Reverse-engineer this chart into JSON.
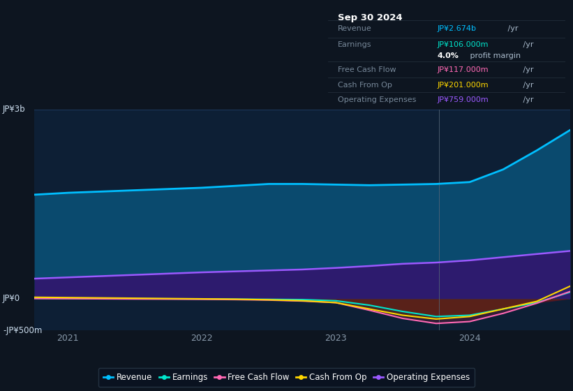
{
  "background_color": "#0d1520",
  "chart_bg": "#0d1f35",
  "title": "Sep 30 2024",
  "ylim": [
    -500,
    3000
  ],
  "ytick_vals": [
    -500,
    0,
    3000
  ],
  "ytick_labels": [
    "-JP¥500m",
    "JP¥0",
    "JP¥3b"
  ],
  "x_years": [
    2020.75,
    2021.0,
    2021.25,
    2021.5,
    2021.75,
    2022.0,
    2022.25,
    2022.5,
    2022.75,
    2023.0,
    2023.25,
    2023.5,
    2023.75,
    2024.0,
    2024.25,
    2024.5,
    2024.75
  ],
  "revenue": [
    1650,
    1680,
    1700,
    1720,
    1740,
    1760,
    1790,
    1820,
    1820,
    1810,
    1800,
    1810,
    1820,
    1850,
    2050,
    2350,
    2674
  ],
  "earnings": [
    10,
    8,
    5,
    2,
    0,
    -2,
    -5,
    -8,
    -12,
    -30,
    -100,
    -200,
    -280,
    -260,
    -160,
    -60,
    106
  ],
  "free_cash": [
    5,
    3,
    0,
    -3,
    -5,
    -8,
    -12,
    -20,
    -35,
    -60,
    -180,
    -310,
    -390,
    -360,
    -230,
    -70,
    117
  ],
  "cash_op": [
    25,
    20,
    15,
    10,
    5,
    0,
    -5,
    -15,
    -30,
    -60,
    -160,
    -260,
    -320,
    -280,
    -160,
    -40,
    201
  ],
  "op_expenses": [
    320,
    340,
    360,
    380,
    400,
    420,
    435,
    450,
    465,
    490,
    520,
    555,
    575,
    610,
    660,
    710,
    759
  ],
  "revenue_color": "#00bfff",
  "earnings_color": "#00e5cc",
  "free_cash_color": "#ff69b4",
  "cash_op_color": "#ffd700",
  "op_expenses_color": "#9b59ff",
  "revenue_fill_color": "#0a4a6e",
  "op_fill_color": "#2d1b6e",
  "earnings_neg_fill": "#5a0a0a",
  "xtick_years": [
    2021,
    2022,
    2023,
    2024
  ],
  "divider_x": 2023.77,
  "grid_color": "#1e3a5f",
  "text_color": "#8899aa",
  "label_color": "#ccddee",
  "info_rows": [
    {
      "label": "Revenue",
      "value": "JP¥2.674b",
      "suffix": " /yr",
      "value_color": "#00bfff"
    },
    {
      "label": "Earnings",
      "value": "JP¥106.000m",
      "suffix": " /yr",
      "value_color": "#00e5cc"
    },
    {
      "label": "",
      "value": "4.0%",
      "suffix": " profit margin",
      "value_color": "#ffffff"
    },
    {
      "label": "Free Cash Flow",
      "value": "JP¥117.000m",
      "suffix": " /yr",
      "value_color": "#ff69b4"
    },
    {
      "label": "Cash From Op",
      "value": "JP¥201.000m",
      "suffix": " /yr",
      "value_color": "#ffd700"
    },
    {
      "label": "Operating Expenses",
      "value": "JP¥759.000m",
      "suffix": " /yr",
      "value_color": "#9b59ff"
    }
  ],
  "legend_items": [
    {
      "label": "Revenue",
      "color": "#00bfff"
    },
    {
      "label": "Earnings",
      "color": "#00e5cc"
    },
    {
      "label": "Free Cash Flow",
      "color": "#ff69b4"
    },
    {
      "label": "Cash From Op",
      "color": "#ffd700"
    },
    {
      "label": "Operating Expenses",
      "color": "#9b59ff"
    }
  ]
}
